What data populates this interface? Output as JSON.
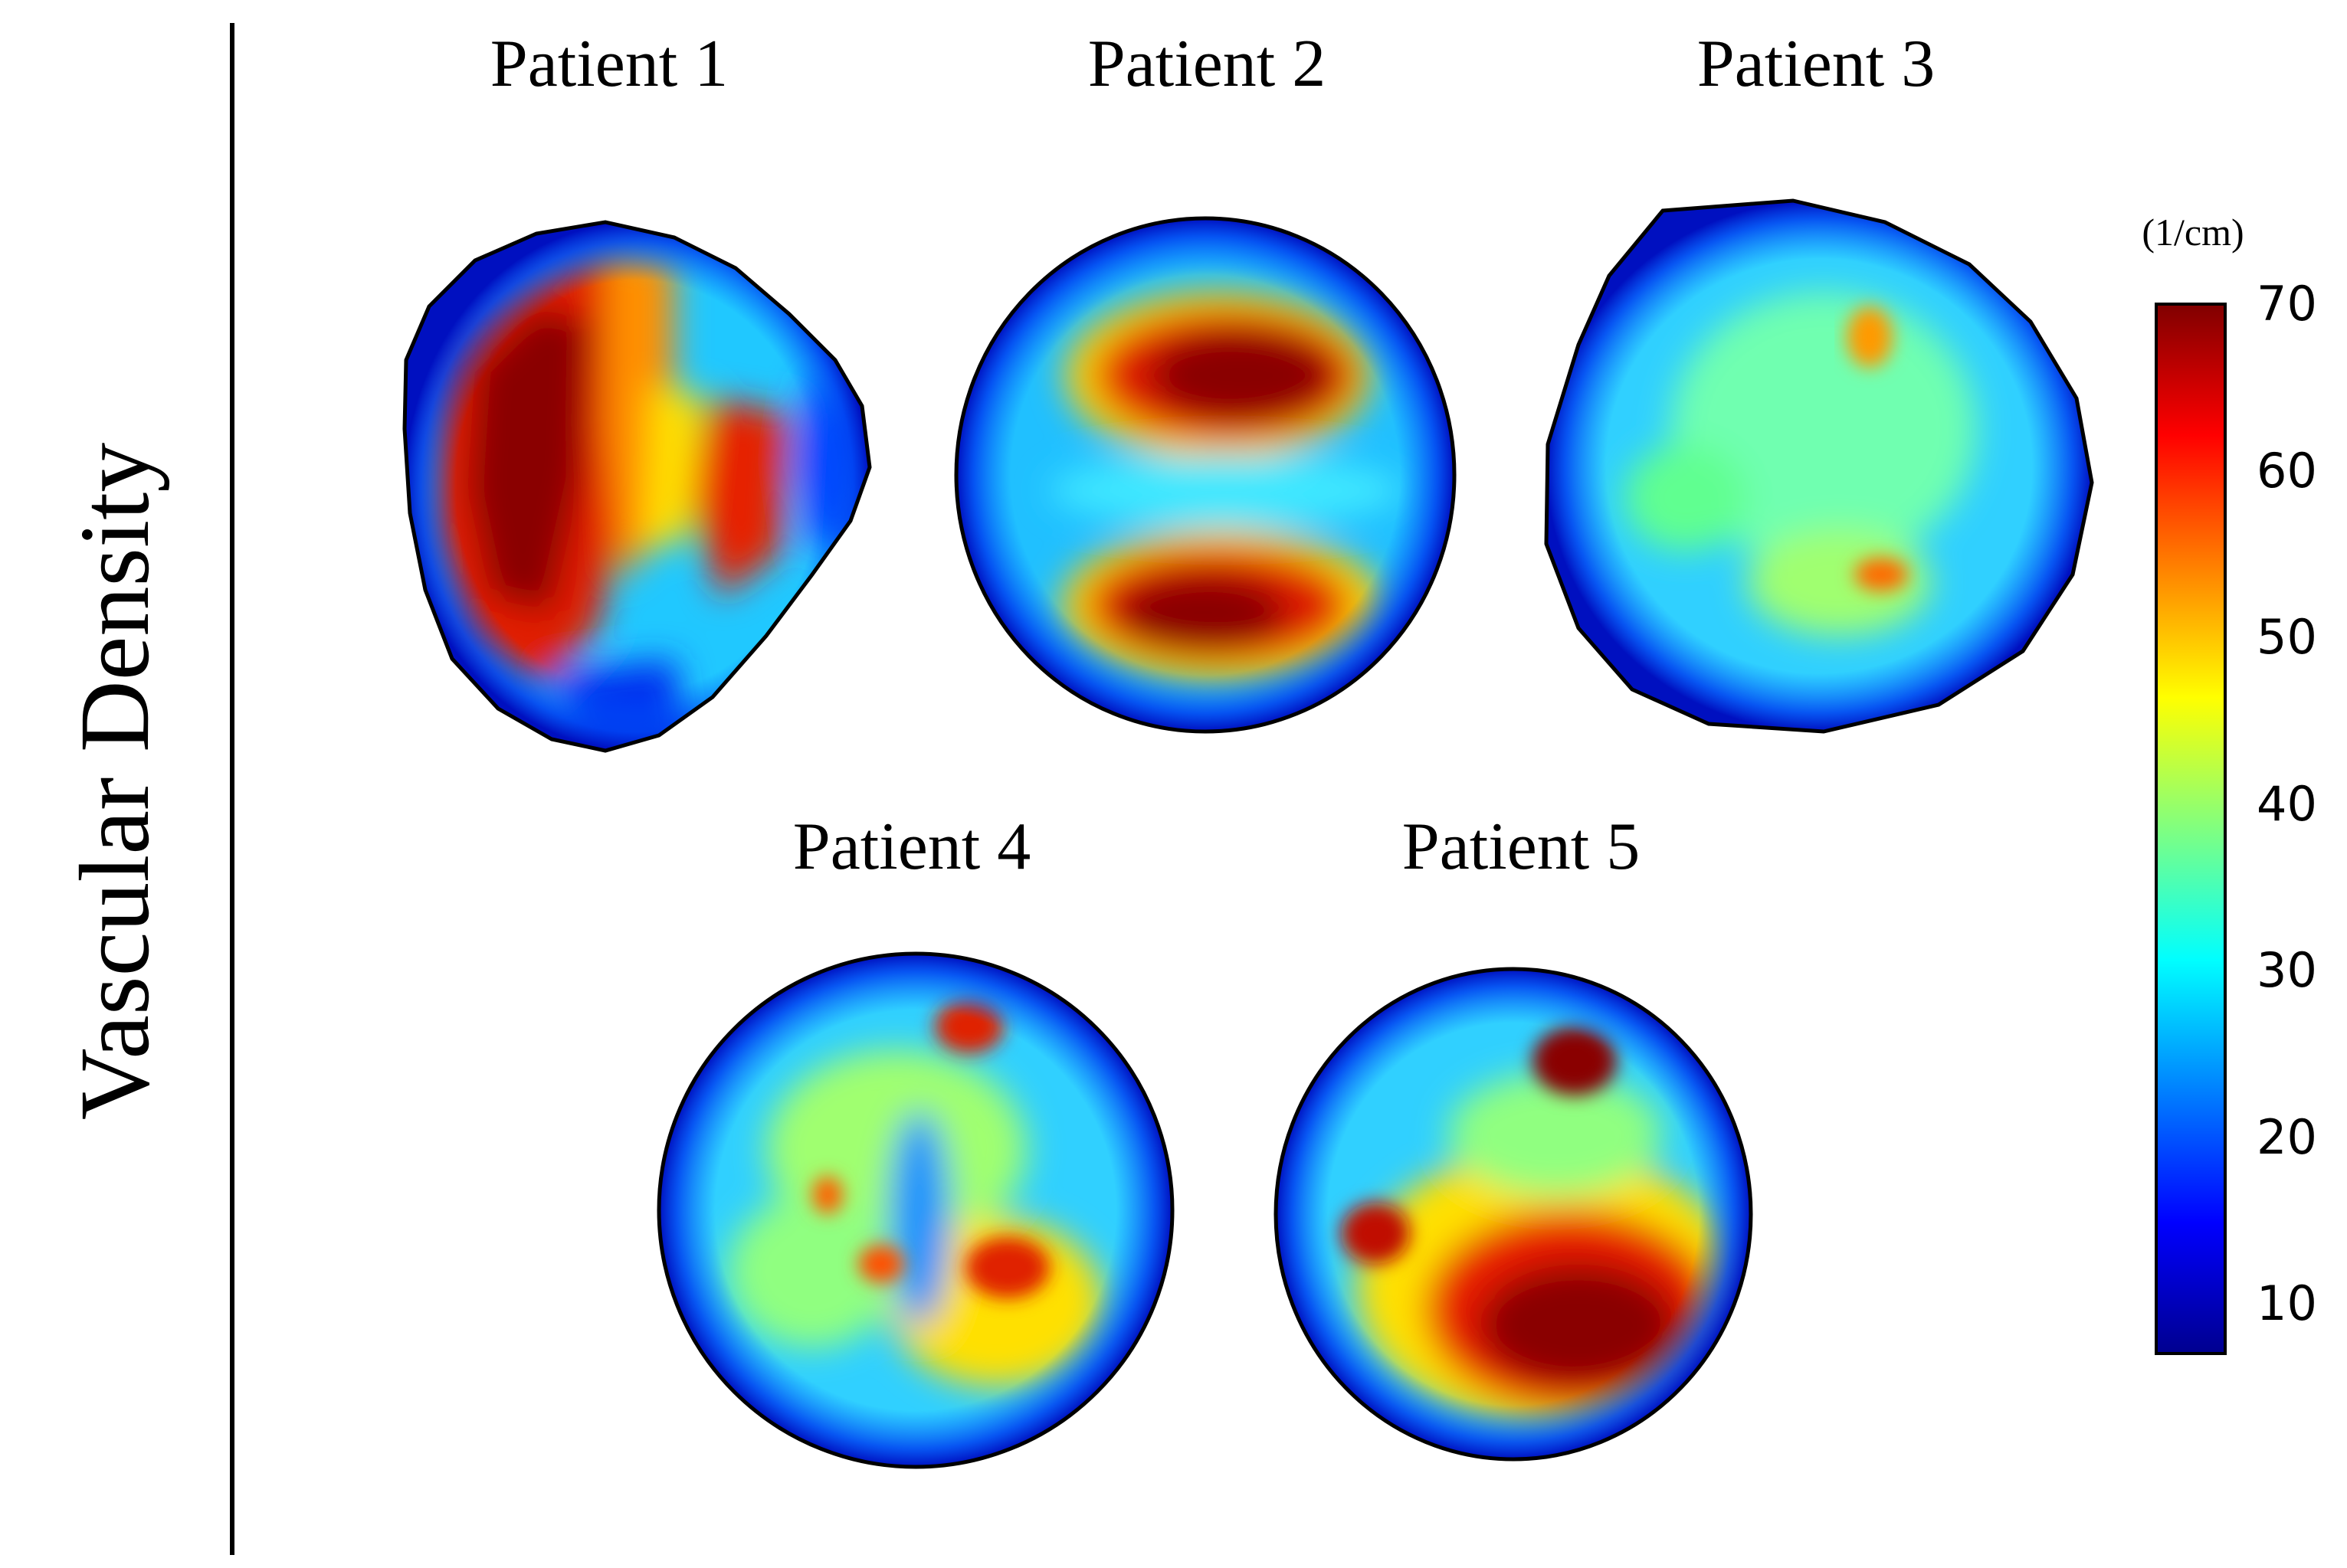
{
  "row_label": "Vascular Density",
  "panels": [
    {
      "title": "Patient 1"
    },
    {
      "title": "Patient 2"
    },
    {
      "title": "Patient 3"
    },
    {
      "title": "Patient 4"
    },
    {
      "title": "Patient 5"
    }
  ],
  "colorbar": {
    "unit": "(1/cm)",
    "colormap": "jet",
    "range": [
      7,
      70
    ],
    "ticks": [
      "70",
      "60",
      "50",
      "40",
      "30",
      "20",
      "10"
    ],
    "colors": [
      "#00008f",
      "#0000ff",
      "#0080ff",
      "#00ffff",
      "#80ff80",
      "#ffff00",
      "#ff8000",
      "#ff0000",
      "#800000"
    ]
  }
}
